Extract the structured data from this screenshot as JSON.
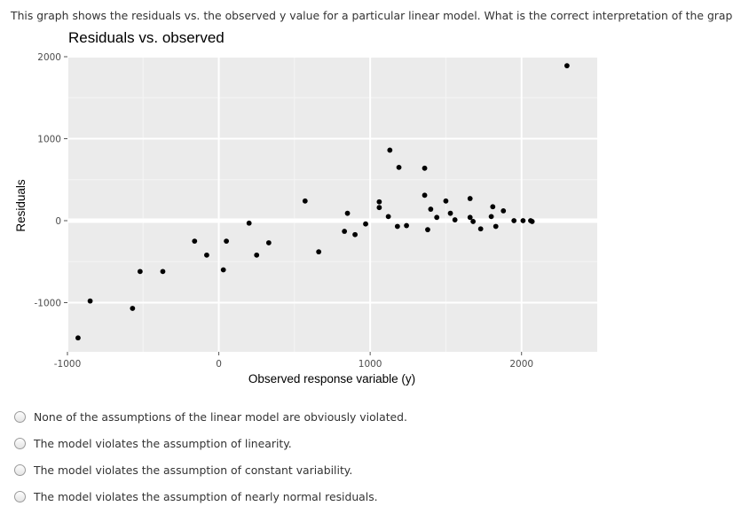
{
  "question": "This graph shows the residuals vs. the observed y value for a particular linear model. What is the correct interpretation of the graph?",
  "chart_data": {
    "type": "scatter",
    "title": "Residuals vs. observed",
    "xlabel": "Observed response variable (y)",
    "ylabel": "Residuals",
    "xlim": [
      -1000,
      2500
    ],
    "ylim": [
      -1600,
      2000
    ],
    "xticks": [
      -1000,
      0,
      1000,
      2000
    ],
    "yticks": [
      -1000,
      0,
      1000,
      2000
    ],
    "xtick_labels": [
      "-1000",
      "0",
      "1000",
      "2000"
    ],
    "ytick_labels": [
      "-1000",
      "0",
      "1000",
      "2000"
    ],
    "grid": true,
    "background": "#ebebeb",
    "point_color": "#000000",
    "points": [
      [
        -930,
        -1430
      ],
      [
        -850,
        -980
      ],
      [
        -570,
        -1070
      ],
      [
        -520,
        -620
      ],
      [
        -370,
        -620
      ],
      [
        -160,
        -250
      ],
      [
        -80,
        -420
      ],
      [
        30,
        -600
      ],
      [
        50,
        -250
      ],
      [
        200,
        -30
      ],
      [
        250,
        -420
      ],
      [
        330,
        -270
      ],
      [
        570,
        240
      ],
      [
        660,
        -380
      ],
      [
        830,
        -130
      ],
      [
        850,
        90
      ],
      [
        900,
        -170
      ],
      [
        970,
        -40
      ],
      [
        1060,
        230
      ],
      [
        1060,
        160
      ],
      [
        1120,
        50
      ],
      [
        1130,
        860
      ],
      [
        1180,
        -70
      ],
      [
        1190,
        650
      ],
      [
        1240,
        -60
      ],
      [
        1360,
        640
      ],
      [
        1360,
        310
      ],
      [
        1380,
        -110
      ],
      [
        1400,
        140
      ],
      [
        1440,
        40
      ],
      [
        1500,
        240
      ],
      [
        1530,
        90
      ],
      [
        1560,
        10
      ],
      [
        1660,
        270
      ],
      [
        1660,
        40
      ],
      [
        1680,
        -10
      ],
      [
        1730,
        -100
      ],
      [
        1800,
        50
      ],
      [
        1810,
        170
      ],
      [
        1830,
        -70
      ],
      [
        1880,
        120
      ],
      [
        1950,
        0
      ],
      [
        2010,
        0
      ],
      [
        2060,
        0
      ],
      [
        2070,
        -10
      ],
      [
        2300,
        1890
      ]
    ]
  },
  "options": [
    "None of the assumptions of the linear model are obviously violated.",
    "The model violates the assumption of linearity.",
    "The model violates the assumption of constant variability.",
    "The model violates the assumption of nearly normal residuals."
  ]
}
